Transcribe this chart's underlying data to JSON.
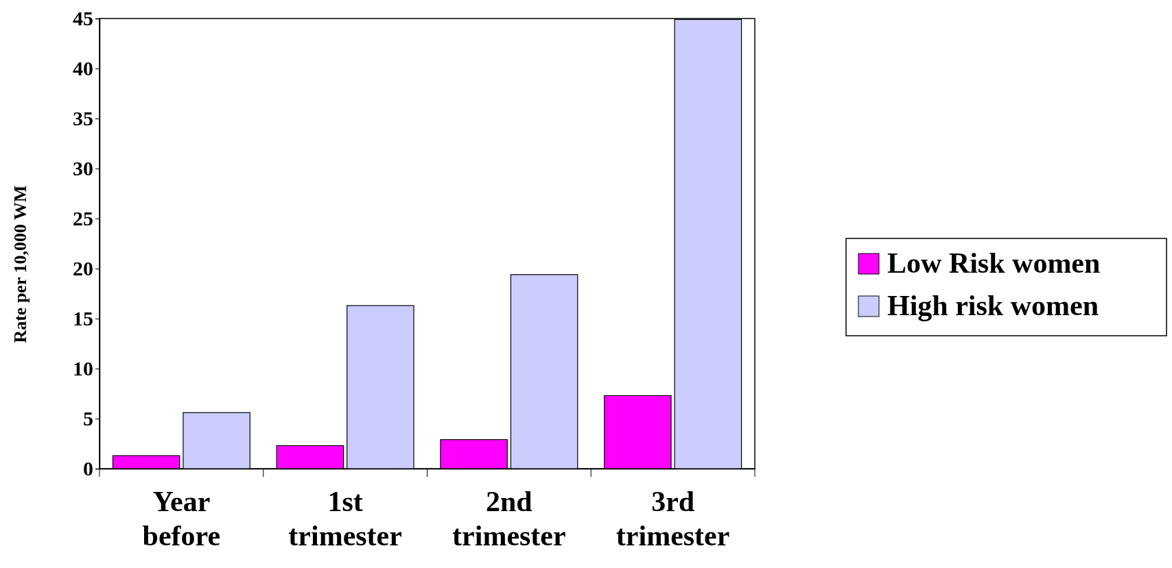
{
  "chart_data": {
    "type": "bar",
    "ylabel": "Rate per 10,000 WM",
    "categories": [
      "Year before",
      "1st trimester",
      "2nd trimester",
      "3rd trimester"
    ],
    "series": [
      {
        "name": "Low Risk women",
        "color": "#ff00ff",
        "values": [
          1.3,
          2.3,
          2.9,
          7.3
        ]
      },
      {
        "name": "High risk women",
        "color": "#ccccff",
        "values": [
          5.6,
          16.3,
          19.4,
          44.9
        ]
      }
    ],
    "ylim": [
      0,
      45
    ],
    "yticks": [
      0,
      5,
      10,
      15,
      20,
      25,
      30,
      35,
      40,
      45
    ],
    "grid": false,
    "legend": "right"
  }
}
